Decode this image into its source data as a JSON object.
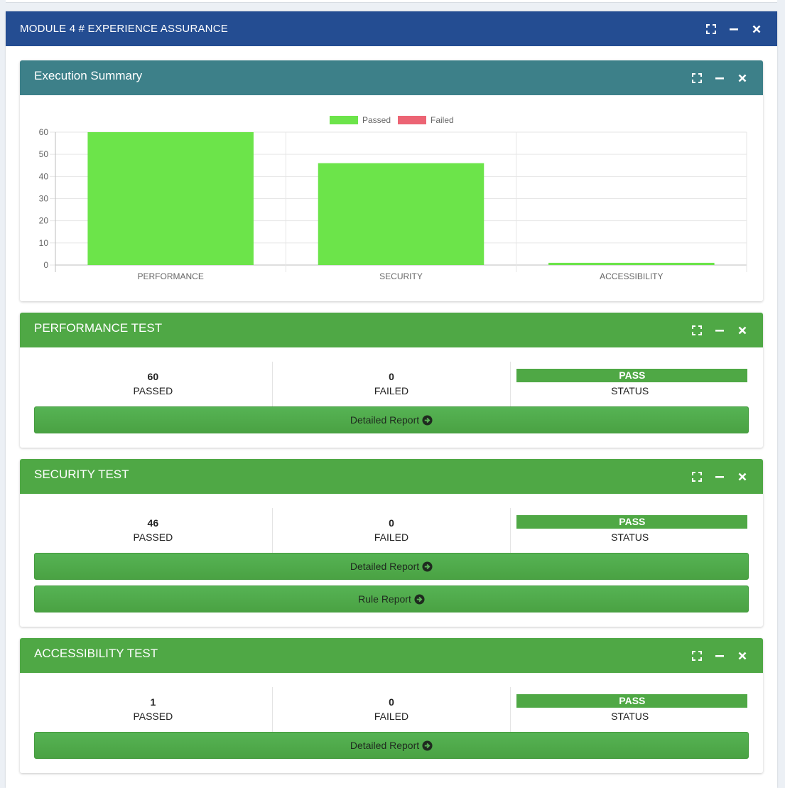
{
  "module": {
    "title": "MODULE 4 # EXPERIENCE ASSURANCE"
  },
  "summary": {
    "title": "Execution Summary"
  },
  "chart_data": {
    "type": "bar",
    "categories": [
      "PERFORMANCE",
      "SECURITY",
      "ACCESSIBILITY"
    ],
    "series": [
      {
        "name": "Passed",
        "values": [
          60,
          46,
          1
        ],
        "color": "#6ce44a"
      },
      {
        "name": "Failed",
        "values": [
          0,
          0,
          0
        ],
        "color": "#ec6474"
      }
    ],
    "ylim": [
      0,
      60
    ],
    "yticks": [
      0,
      10,
      20,
      30,
      40,
      50,
      60
    ],
    "grid": true,
    "legend": "top-center"
  },
  "tests": [
    {
      "title": "PERFORMANCE TEST",
      "passed": "60",
      "passed_label": "PASSED",
      "failed": "0",
      "failed_label": "FAILED",
      "status": "PASS",
      "status_label": "STATUS",
      "buttons": [
        "Detailed Report"
      ]
    },
    {
      "title": "SECURITY TEST",
      "passed": "46",
      "passed_label": "PASSED",
      "failed": "0",
      "failed_label": "FAILED",
      "status": "PASS",
      "status_label": "STATUS",
      "buttons": [
        "Detailed Report",
        "Rule Report"
      ]
    },
    {
      "title": "ACCESSIBILITY TEST",
      "passed": "1",
      "passed_label": "PASSED",
      "failed": "0",
      "failed_label": "FAILED",
      "status": "PASS",
      "status_label": "STATUS",
      "buttons": [
        "Detailed Report"
      ]
    }
  ],
  "icons": {
    "expand": "expand-icon",
    "minimize": "minus-icon",
    "close": "close-icon",
    "button": "arrow-circle-right-icon"
  }
}
